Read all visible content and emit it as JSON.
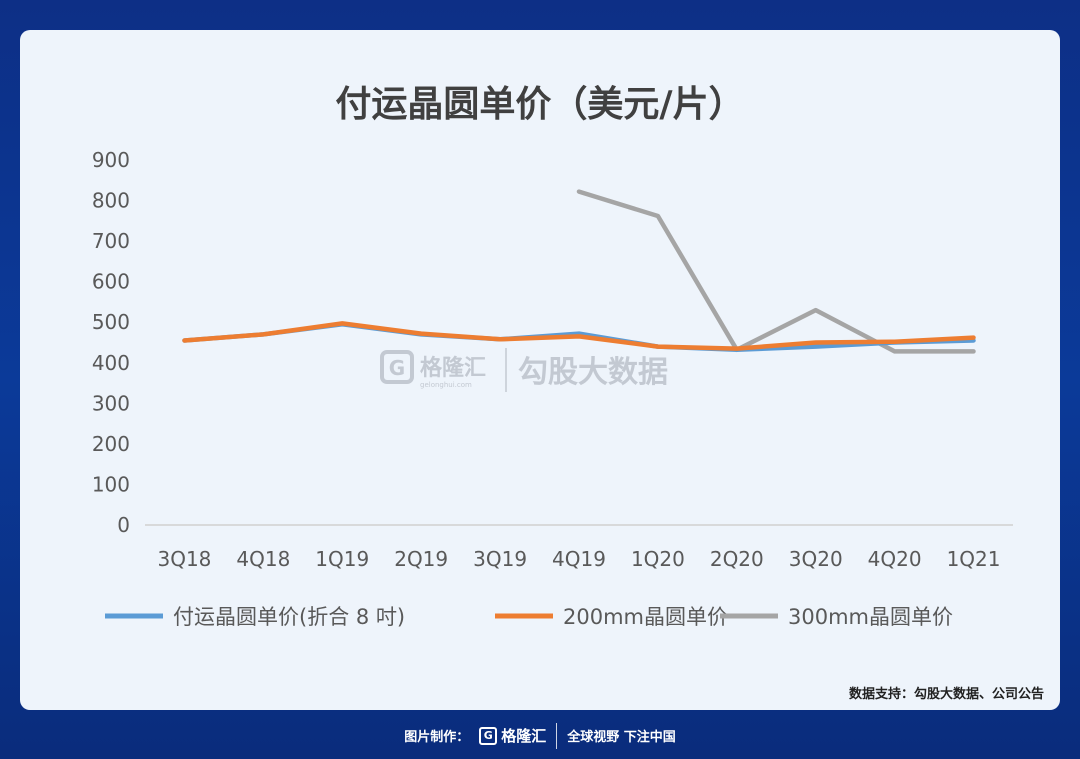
{
  "chart_data": {
    "type": "line",
    "title": "付运晶圆单价（美元/片）",
    "categories": [
      "3Q18",
      "4Q18",
      "1Q19",
      "2Q19",
      "3Q19",
      "4Q19",
      "1Q20",
      "2Q20",
      "3Q20",
      "4Q20",
      "1Q21"
    ],
    "ylim": [
      0,
      900
    ],
    "yticks": [
      0,
      100,
      200,
      300,
      400,
      500,
      600,
      700,
      800,
      900
    ],
    "grid": false,
    "legend_position": "bottom",
    "series": [
      {
        "name": "付运晶圆单价(折合 8 吋)",
        "color": "#5b9bd5",
        "values": [
          455,
          470,
          495,
          470,
          458,
          472,
          440,
          432,
          440,
          450,
          455
        ]
      },
      {
        "name": "200mm晶圆单价",
        "color": "#ed7d31",
        "values": [
          455,
          470,
          497,
          472,
          458,
          465,
          440,
          435,
          450,
          452,
          462
        ]
      },
      {
        "name": "300mm晶圆单价",
        "color": "#a5a5a5",
        "values": [
          null,
          null,
          null,
          null,
          null,
          822,
          762,
          432,
          530,
          428,
          428
        ]
      }
    ]
  },
  "watermark": {
    "brand": "格隆汇",
    "sub": "gelonghui.com",
    "text": "勾股大数据"
  },
  "source_text": "数据支持：勾股大数据、公司公告",
  "footer": {
    "label": "图片制作：",
    "brand": "格隆汇",
    "slogan": "全球视野 下注中国"
  }
}
